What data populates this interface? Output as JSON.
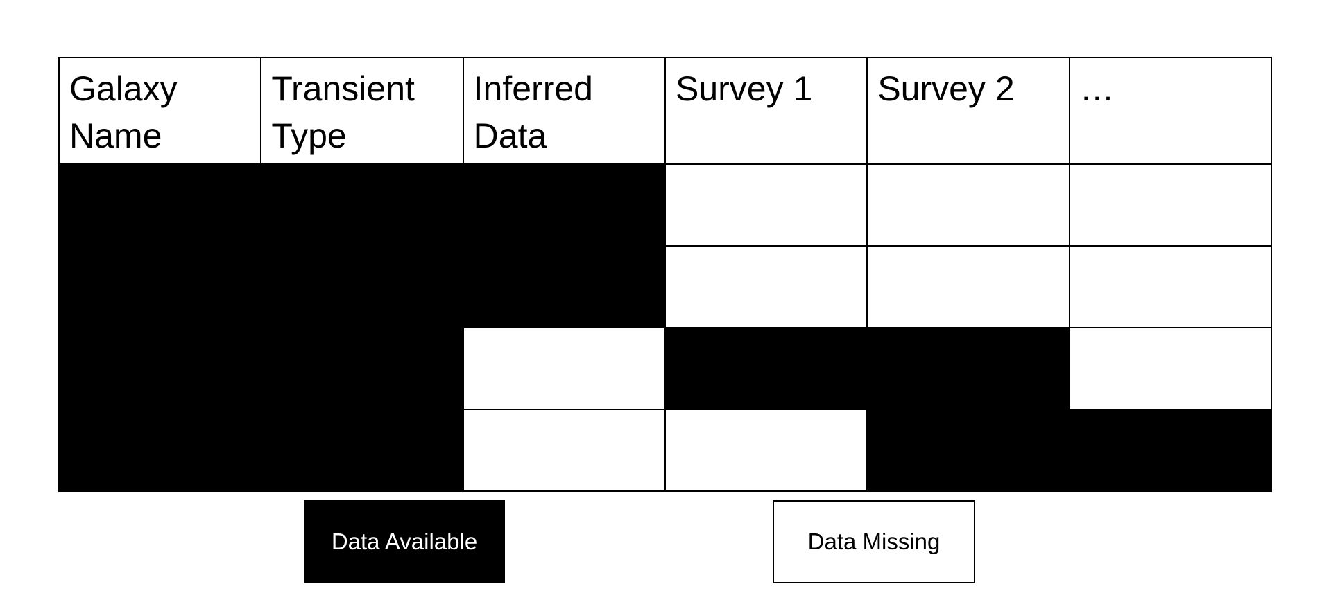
{
  "table": {
    "headers": [
      "Galaxy Name",
      "Transient Type",
      "Inferred Data",
      "Survey 1",
      "Survey 2",
      "…"
    ],
    "rows": [
      [
        "available",
        "available",
        "available",
        "missing",
        "missing",
        "missing"
      ],
      [
        "available",
        "available",
        "available",
        "missing",
        "missing",
        "missing"
      ],
      [
        "available",
        "available",
        "missing",
        "available",
        "available",
        "missing"
      ],
      [
        "available",
        "available",
        "missing",
        "missing",
        "available",
        "available"
      ]
    ]
  },
  "legend": {
    "available_label": "Data Available",
    "missing_label": "Data Missing"
  },
  "colors": {
    "available": "#000000",
    "missing": "#ffffff",
    "border": "#000000"
  }
}
